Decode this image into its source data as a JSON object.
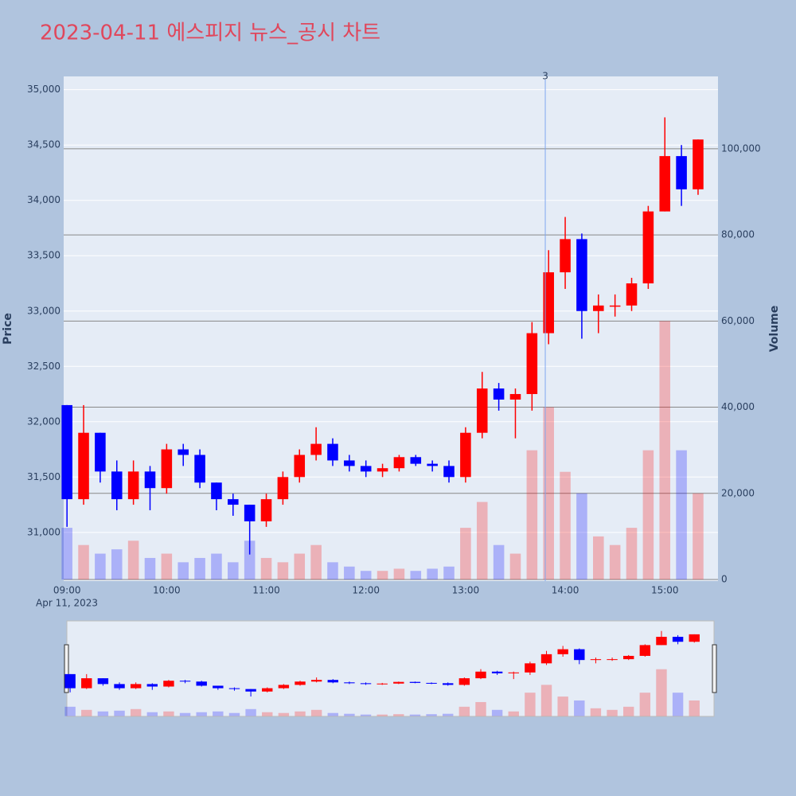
{
  "chart_data": {
    "type": "candlestick",
    "title": "2023-04-11 에스피지 뉴스_공시 차트",
    "y_label": "Price",
    "y2_label": "Volume",
    "x_sublabel": "Apr 11, 2023",
    "increasing_color": "#ff0000",
    "decreasing_color": "#0000ff",
    "x": [
      "09:00",
      "09:10",
      "09:20",
      "09:30",
      "09:40",
      "09:50",
      "10:00",
      "10:10",
      "10:20",
      "10:30",
      "10:40",
      "10:50",
      "11:00",
      "11:10",
      "11:20",
      "11:30",
      "11:40",
      "11:50",
      "12:00",
      "12:10",
      "12:20",
      "12:30",
      "12:40",
      "12:50",
      "13:00",
      "13:10",
      "13:20",
      "13:30",
      "13:40",
      "13:50",
      "14:00",
      "14:10",
      "14:20",
      "14:30",
      "14:40",
      "14:50",
      "15:00",
      "15:10",
      "15:20"
    ],
    "open": [
      32150,
      31300,
      31900,
      31550,
      31300,
      31550,
      31400,
      31750,
      31700,
      31450,
      31300,
      31250,
      31100,
      31300,
      31500,
      31700,
      31800,
      31650,
      31600,
      31550,
      31580,
      31680,
      31620,
      31600,
      31500,
      31900,
      32300,
      32200,
      32250,
      32800,
      33350,
      33650,
      33000,
      33050,
      33050,
      33250,
      33900,
      34400,
      34100
    ],
    "high": [
      32150,
      32150,
      31900,
      31650,
      31650,
      31600,
      31800,
      31800,
      31750,
      31450,
      31350,
      31250,
      31350,
      31550,
      31750,
      31950,
      31850,
      31700,
      31650,
      31620,
      31700,
      31700,
      31650,
      31650,
      31950,
      32450,
      32350,
      32300,
      32900,
      33550,
      33850,
      33700,
      33150,
      33150,
      33300,
      33950,
      34750,
      34500,
      34550
    ],
    "low": [
      31050,
      31250,
      31450,
      31200,
      31250,
      31200,
      31350,
      31600,
      31400,
      31200,
      31150,
      30800,
      31050,
      31250,
      31450,
      31650,
      31600,
      31550,
      31500,
      31500,
      31550,
      31600,
      31550,
      31450,
      31450,
      31850,
      32100,
      31850,
      32100,
      32700,
      33200,
      32750,
      32800,
      32950,
      33000,
      33200,
      33900,
      33950,
      34050
    ],
    "close": [
      31300,
      31900,
      31550,
      31300,
      31550,
      31400,
      31750,
      31700,
      31450,
      31300,
      31250,
      31100,
      31300,
      31500,
      31700,
      31800,
      31650,
      31600,
      31550,
      31580,
      31680,
      31620,
      31600,
      31500,
      31900,
      32300,
      32200,
      32250,
      32800,
      33350,
      33650,
      33000,
      33050,
      33050,
      33250,
      33900,
      34400,
      34100,
      34550
    ],
    "volume": [
      12000,
      8000,
      6000,
      7000,
      9000,
      5000,
      6000,
      4000,
      5000,
      6000,
      4000,
      9000,
      5000,
      4000,
      6000,
      8000,
      4000,
      3000,
      2000,
      2000,
      2500,
      2000,
      2500,
      3000,
      12000,
      18000,
      8000,
      6000,
      30000,
      40000,
      25000,
      20000,
      10000,
      8000,
      12000,
      30000,
      60000,
      30000,
      20000
    ],
    "xlim": [
      "08:58",
      "15:32"
    ],
    "xticks": [
      "09:00",
      "10:00",
      "11:00",
      "12:00",
      "13:00",
      "14:00",
      "15:00"
    ],
    "ylim": [
      30560,
      35120
    ],
    "yticks": [
      {
        "value": 31000,
        "label": "31,000"
      },
      {
        "value": 31500,
        "label": "31,500"
      },
      {
        "value": 32000,
        "label": "32,000"
      },
      {
        "value": 32500,
        "label": "32,500"
      },
      {
        "value": 33000,
        "label": "33,000"
      },
      {
        "value": 33500,
        "label": "33,500"
      },
      {
        "value": 34000,
        "label": "34,000"
      },
      {
        "value": 34500,
        "label": "34,500"
      },
      {
        "value": 35000,
        "label": "35,000"
      }
    ],
    "y2lim": [
      -370,
      116800
    ],
    "y2ticks": [
      0,
      {
        "value": 20000,
        "label": "20,000"
      },
      {
        "value": 40000,
        "label": "40,000"
      },
      {
        "value": 60000,
        "label": "60,000"
      },
      {
        "value": 80000,
        "label": "80,000"
      },
      {
        "value": 100000,
        "label": "100,000"
      }
    ],
    "annotations": [
      {
        "x": "13:48",
        "text": "3"
      }
    ],
    "grid": true,
    "rangeslider": true
  }
}
